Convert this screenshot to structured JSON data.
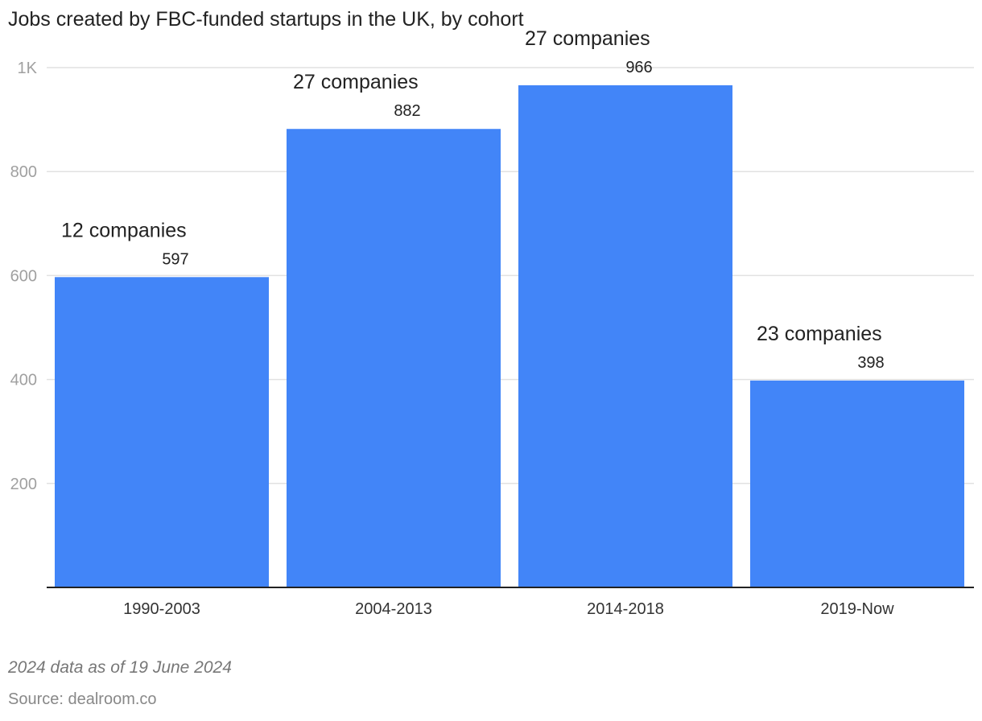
{
  "chart_data": {
    "type": "bar",
    "title": "Jobs created by FBC-funded startups in the UK, by cohort",
    "categories": [
      "1990-2003",
      "2004-2013",
      "2014-2018",
      "2019-Now"
    ],
    "values": [
      597,
      882,
      966,
      398
    ],
    "annotations": [
      "12 companies",
      "27 companies",
      "27 companies",
      "23 companies"
    ],
    "y_ticks": [
      200,
      400,
      600,
      800,
      1000
    ],
    "y_tick_labels": [
      "200",
      "400",
      "600",
      "800",
      "1K"
    ],
    "ylim": [
      0,
      1000
    ],
    "xlabel": "",
    "ylabel": "",
    "grid": true,
    "legend": "none",
    "bar_color": "#4285F8",
    "grid_color": "#e1e1e1",
    "tick_label_color": "#a0a0a0",
    "baseline_color": "#222222"
  },
  "footer": {
    "note": "2024 data as of 19 June 2024",
    "source": "Source: dealroom.co"
  }
}
